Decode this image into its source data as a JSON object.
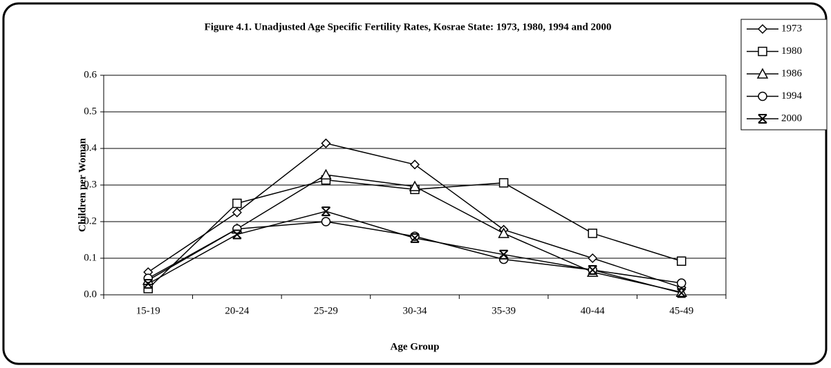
{
  "chart_data": {
    "type": "line",
    "title": "Figure 4.1. Unadjusted Age Specific Fertility Rates, Kosrae State: 1973, 1980, 1994 and 2000",
    "x_label": "Age Group",
    "y_label": "Children per Woman",
    "categories": [
      "15-19",
      "20-24",
      "25-29",
      "30-34",
      "35-39",
      "40-44",
      "45-49"
    ],
    "series": [
      {
        "name": "1973",
        "color": "#000000",
        "marker": "diamond",
        "values": [
          0.062,
          0.225,
          0.414,
          0.356,
          0.178,
          0.1,
          0.02
        ]
      },
      {
        "name": "1980",
        "color": "#000000",
        "marker": "square",
        "values": [
          0.017,
          0.25,
          0.314,
          0.288,
          0.306,
          0.168,
          0.092
        ]
      },
      {
        "name": "1986",
        "color": "#000000",
        "marker": "triangle",
        "values": [
          0.04,
          0.18,
          0.328,
          0.296,
          0.168,
          0.062,
          0.007
        ]
      },
      {
        "name": "1994",
        "color": "#000000",
        "marker": "circle",
        "values": [
          0.045,
          0.18,
          0.2,
          0.16,
          0.097,
          0.068,
          0.032
        ]
      },
      {
        "name": "2000",
        "color": "#000000",
        "marker": "x",
        "values": [
          0.03,
          0.165,
          0.228,
          0.155,
          0.11,
          0.068,
          0.005
        ]
      }
    ],
    "ylim": [
      0,
      0.6
    ],
    "yticks": [
      {
        "value": 0,
        "label": "0.0"
      },
      0.1,
      0.2,
      0.3,
      0.4,
      0.5,
      0.6
    ],
    "grid": true,
    "legend": "top-right"
  }
}
